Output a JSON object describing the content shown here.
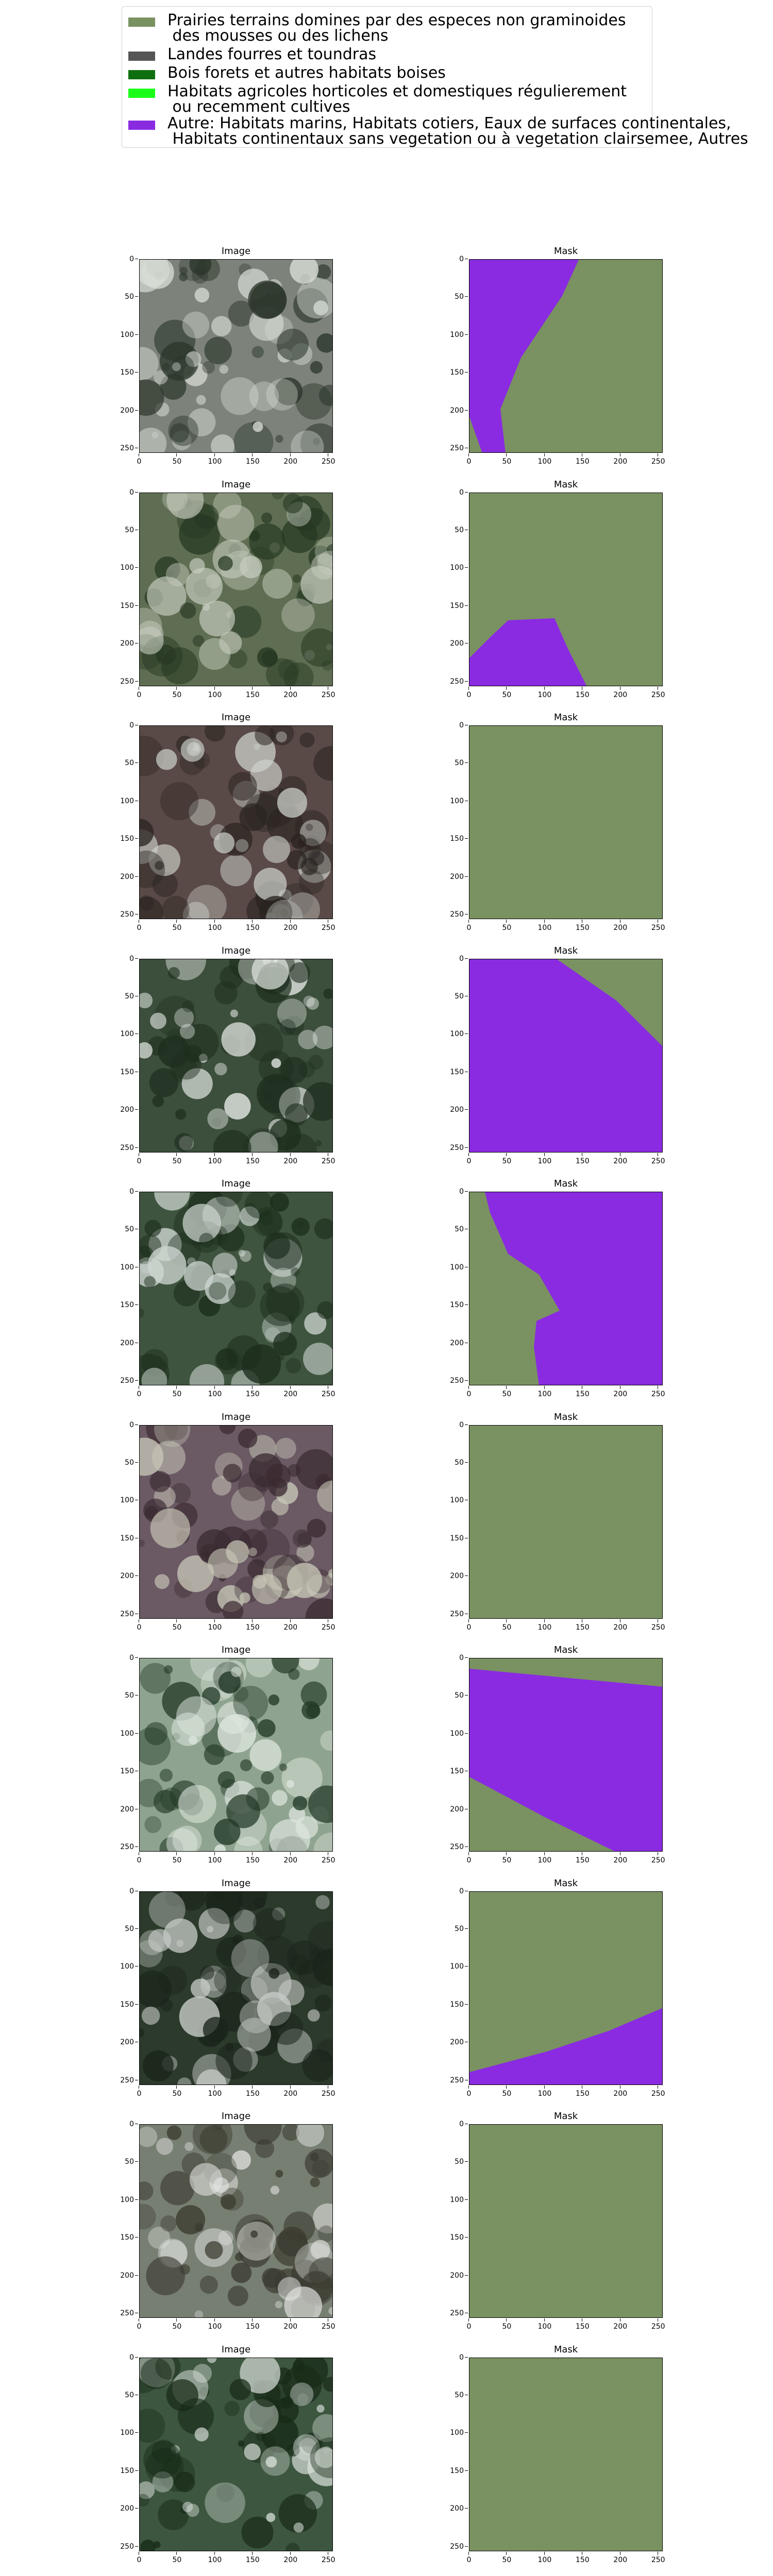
{
  "legend": {
    "items": [
      {
        "label": "Prairies terrains domines par des especes non graminoides\n des mousses ou des lichens",
        "color": "#7a9161"
      },
      {
        "label": "Landes fourres et toundras",
        "color": "#555555"
      },
      {
        "label": "Bois forets et autres habitats boises",
        "color": "#0f6f0f"
      },
      {
        "label": "Habitats agricoles horticoles et domestiques régulierement\n ou recemment cultives",
        "color": "#1aff1a"
      },
      {
        "label": "Autre: Habitats marins, Habitats cotiers, Eaux de surfaces continentales,\n Habitats continentaux sans vegetation ou à vegetation clairsemee, Autres",
        "color": "#8a2be2"
      }
    ]
  },
  "panel_titles": {
    "image": "Image",
    "mask": "Mask"
  },
  "axis_ticks": {
    "x": [
      "0",
      "50",
      "100",
      "150",
      "200",
      "250"
    ],
    "y": [
      "0",
      "50",
      "100",
      "150",
      "200",
      "250"
    ]
  },
  "colors": {
    "grassland": "#7a9161",
    "other": "#8a2be2"
  },
  "image_tones": [
    {
      "base": "#7d837b",
      "dark": "#2b352a",
      "light": "#d8ddd6"
    },
    {
      "base": "#5f6e52",
      "dark": "#263822",
      "light": "#c7cdbf"
    },
    {
      "base": "#5a4a47",
      "dark": "#2a2420",
      "light": "#cfd3cd"
    },
    {
      "base": "#3c4e3c",
      "dark": "#1e2e1e",
      "light": "#e8ece8"
    },
    {
      "base": "#3f543f",
      "dark": "#1c2d1c",
      "light": "#cfd7d2"
    },
    {
      "base": "#6b5a64",
      "dark": "#3a2a30",
      "light": "#c9c8b8"
    },
    {
      "base": "#8fa490",
      "dark": "#233a28",
      "light": "#dfe7df"
    },
    {
      "base": "#2c3a2c",
      "dark": "#1a241a",
      "light": "#c8ccc8"
    },
    {
      "base": "#777e72",
      "dark": "#3b3b30",
      "light": "#e4e6e3"
    },
    {
      "base": "#3d5640",
      "dark": "#172a17",
      "light": "#d9e0da"
    }
  ],
  "masks": [
    {
      "other": [
        [
          0,
          0
        ],
        [
          212,
          0
        ],
        [
          180,
          70
        ],
        [
          100,
          190
        ],
        [
          60,
          290
        ],
        [
          70,
          376
        ],
        [
          25,
          376
        ],
        [
          0,
          305
        ]
      ]
    },
    {
      "other": [
        [
          0,
          320
        ],
        [
          40,
          280
        ],
        [
          75,
          247
        ],
        [
          165,
          243
        ],
        [
          190,
          300
        ],
        [
          228,
          376
        ],
        [
          0,
          376
        ]
      ]
    },
    {
      "other": []
    },
    {
      "other": [
        [
          0,
          0
        ],
        [
          170,
          0
        ],
        [
          285,
          80
        ],
        [
          376,
          170
        ],
        [
          376,
          376
        ],
        [
          0,
          376
        ]
      ]
    },
    {
      "other": [
        [
          30,
          0
        ],
        [
          376,
          0
        ],
        [
          376,
          376
        ],
        [
          135,
          376
        ],
        [
          125,
          300
        ],
        [
          130,
          250
        ],
        [
          175,
          230
        ],
        [
          135,
          160
        ],
        [
          75,
          120
        ],
        [
          40,
          40
        ]
      ]
    },
    {
      "other": []
    },
    {
      "other": [
        [
          0,
          20
        ],
        [
          376,
          55
        ],
        [
          376,
          376
        ],
        [
          345,
          376
        ],
        [
          285,
          376
        ],
        [
          150,
          310
        ],
        [
          0,
          230
        ]
      ]
    },
    {
      "other": [
        [
          0,
          350
        ],
        [
          150,
          310
        ],
        [
          270,
          270
        ],
        [
          376,
          225
        ],
        [
          376,
          376
        ],
        [
          0,
          376
        ]
      ]
    },
    {
      "other": []
    },
    {
      "other": []
    }
  ]
}
